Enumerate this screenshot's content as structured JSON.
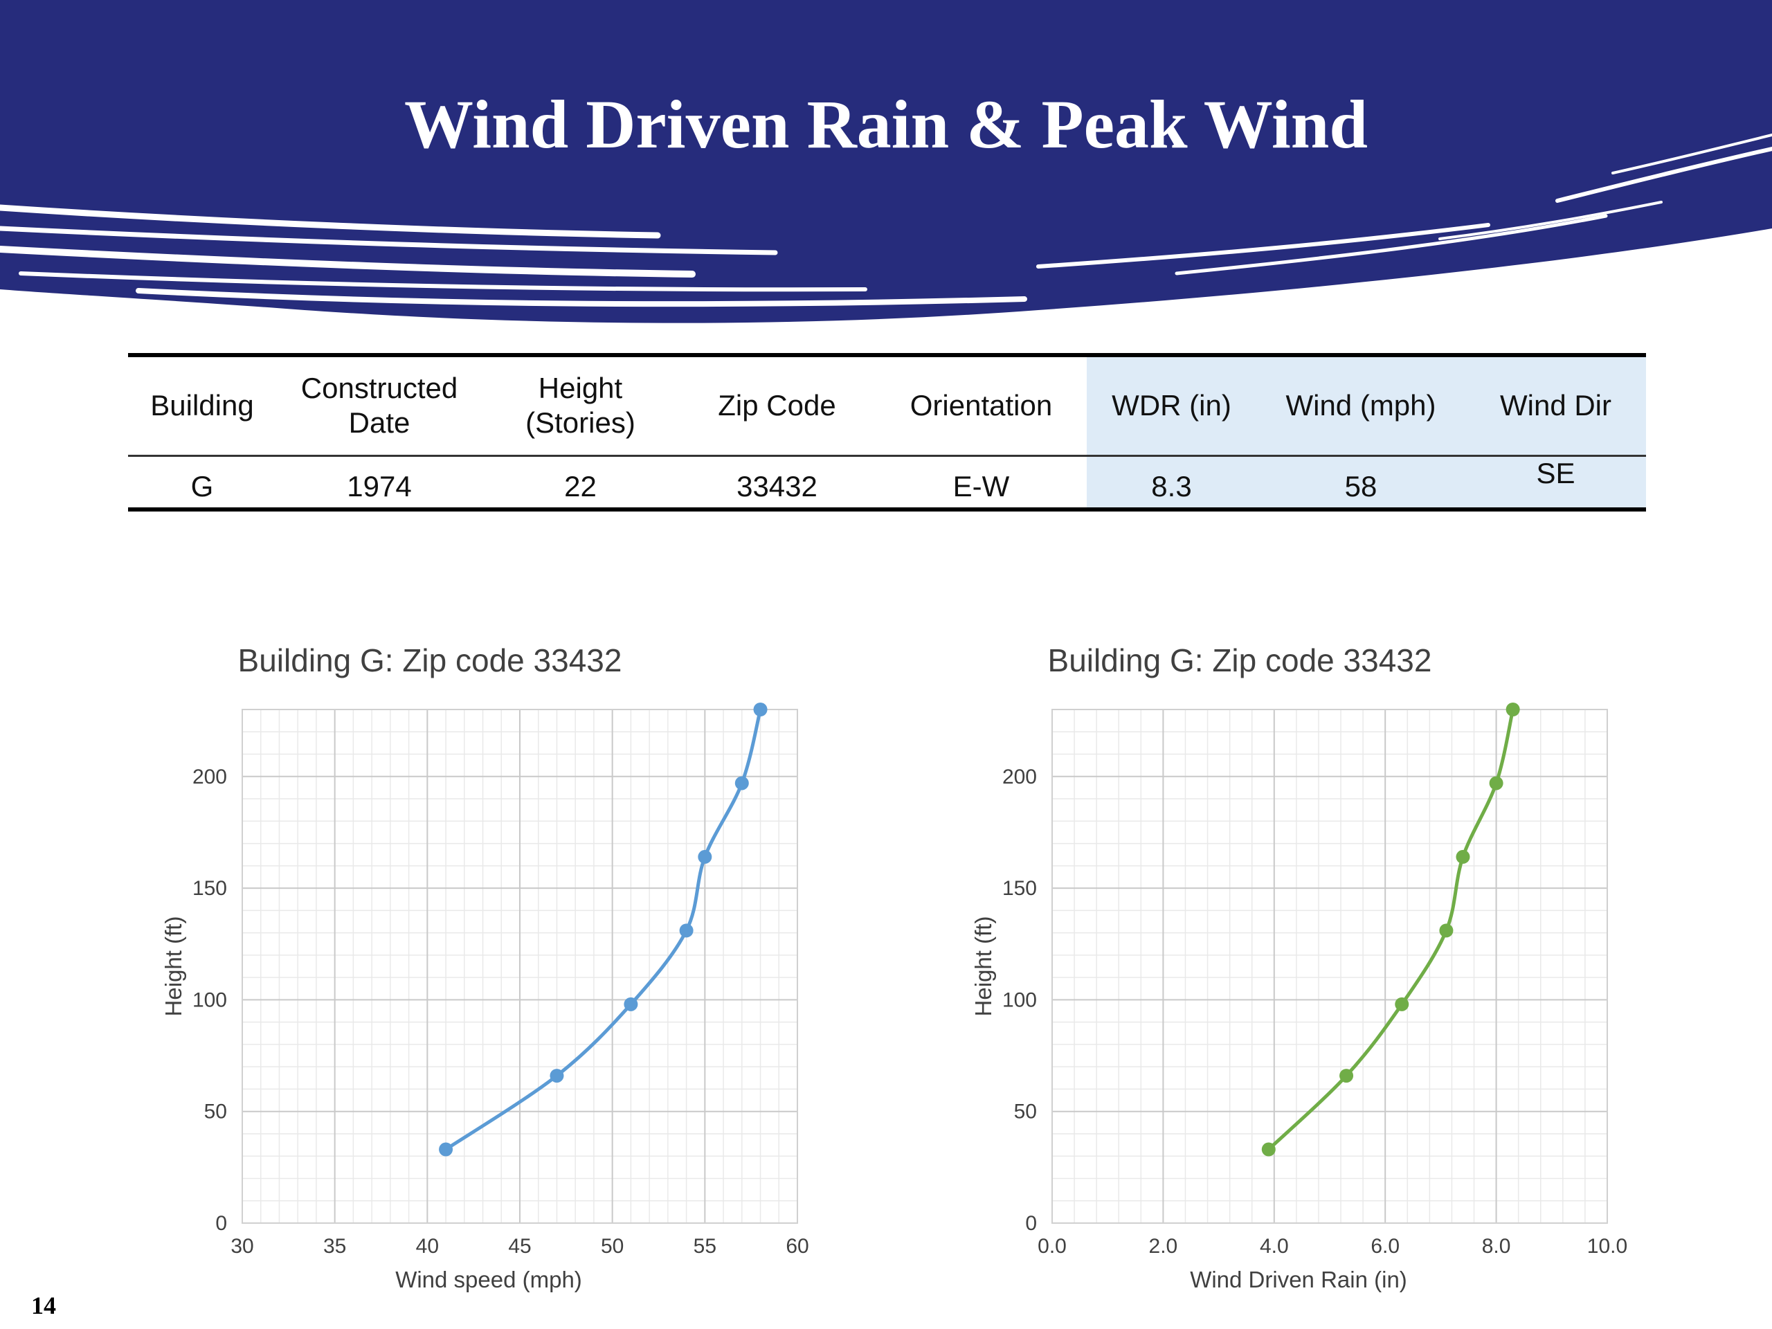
{
  "slide": {
    "title": "Wind Driven Rain & Peak Wind",
    "page_number": "14",
    "colors": {
      "banner": "#262c7c",
      "highlight": "#deebf7",
      "series_left": "#5b9bd5",
      "series_right": "#70ad47"
    }
  },
  "table": {
    "headers": [
      "Building",
      "Constructed\nDate",
      "Height\n(Stories)",
      "Zip Code",
      "Orientation",
      "WDR (in)",
      "Wind  (mph)",
      "Wind Dir"
    ],
    "row": [
      "G",
      "1974",
      "22",
      "33432",
      "E-W",
      "8.3",
      "58",
      "SE"
    ]
  },
  "chart_data": [
    {
      "type": "line",
      "title": "Building G: Zip code 33432",
      "xlabel": "Wind speed (mph)",
      "ylabel": "Height (ft)",
      "xlim": [
        30,
        60
      ],
      "ylim": [
        0,
        230
      ],
      "xticks": [
        30,
        35,
        40,
        45,
        50,
        55,
        60
      ],
      "xtick_labels": [
        "30",
        "35",
        "40",
        "45",
        "50",
        "55",
        "60"
      ],
      "yticks": [
        0,
        50,
        100,
        150,
        200
      ],
      "ytick_labels": [
        "0",
        "50",
        "100",
        "150",
        "200"
      ],
      "grid": true,
      "color": "#5b9bd5",
      "x": [
        41,
        47,
        51,
        54,
        55,
        57,
        58
      ],
      "y": [
        33,
        66,
        98,
        131,
        164,
        197,
        230
      ]
    },
    {
      "type": "line",
      "title": "Building G: Zip code 33432",
      "xlabel": "Wind Driven Rain (in)",
      "ylabel": "Height (ft)",
      "xlim": [
        0,
        10
      ],
      "ylim": [
        0,
        230
      ],
      "xticks": [
        0,
        2,
        4,
        6,
        8,
        10
      ],
      "xtick_labels": [
        "0.0",
        "2.0",
        "4.0",
        "6.0",
        "8.0",
        "10.0"
      ],
      "yticks": [
        0,
        50,
        100,
        150,
        200
      ],
      "ytick_labels": [
        "0",
        "50",
        "100",
        "150",
        "200"
      ],
      "grid": true,
      "color": "#70ad47",
      "x": [
        3.9,
        5.3,
        6.3,
        7.1,
        7.4,
        8.0,
        8.3
      ],
      "y": [
        33,
        66,
        98,
        131,
        164,
        197,
        230
      ]
    }
  ]
}
